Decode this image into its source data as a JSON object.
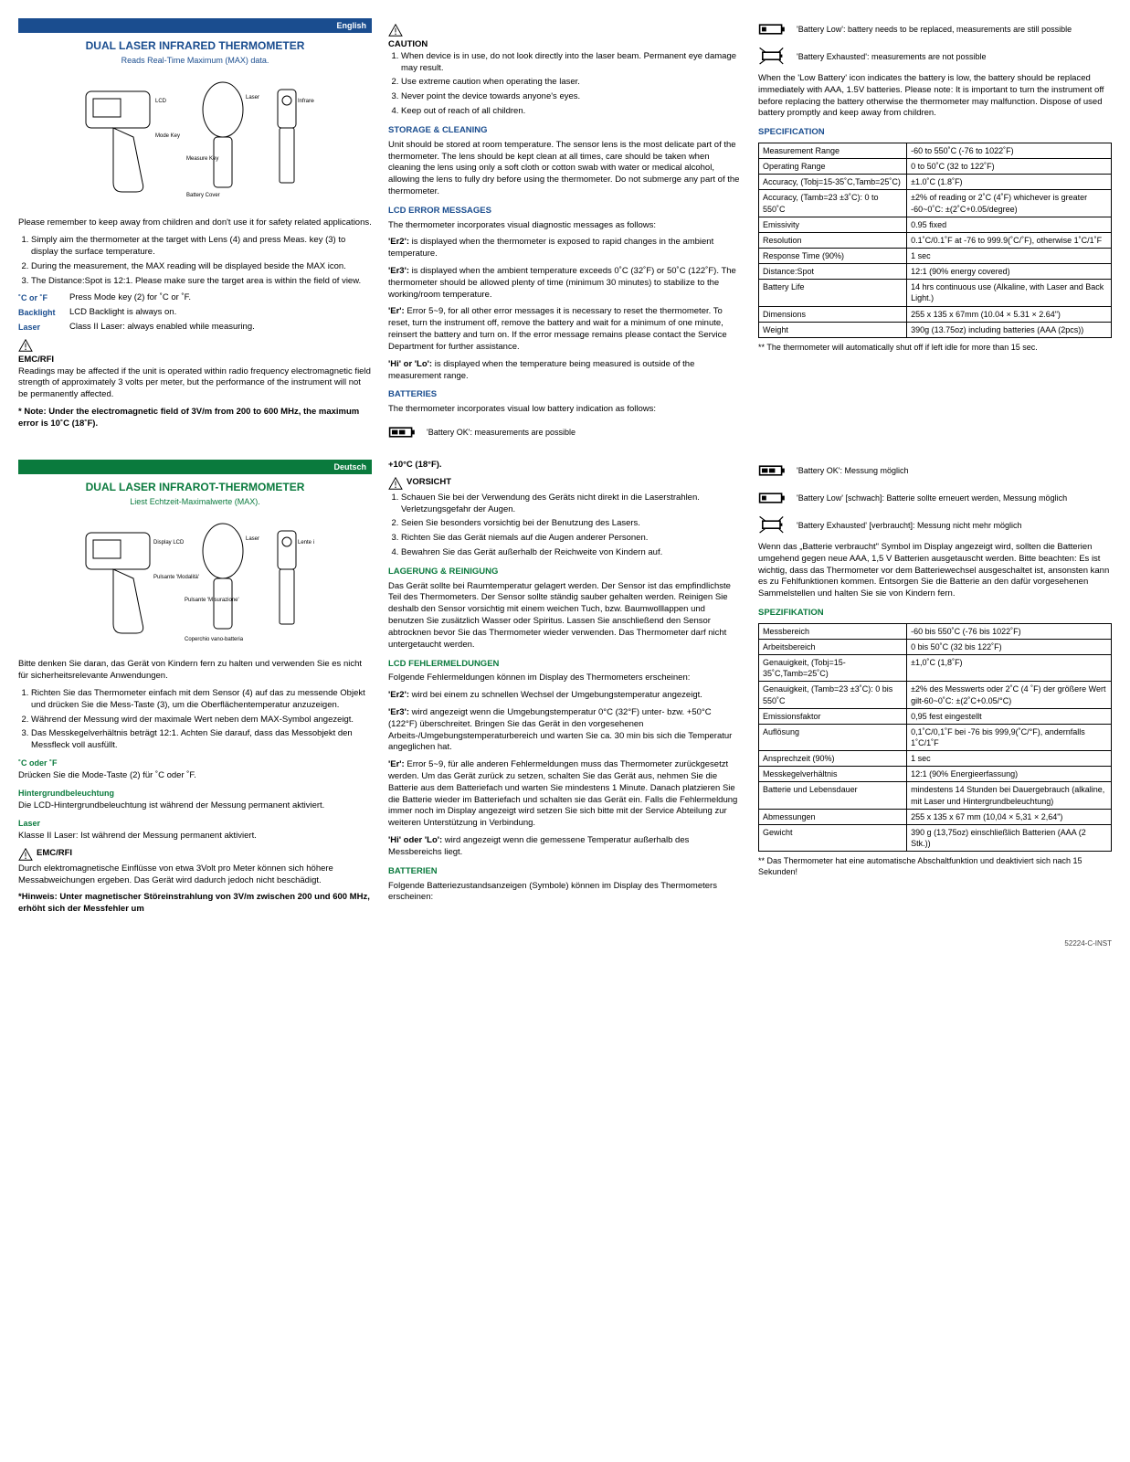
{
  "footer_code": "52224-C-INST",
  "en": {
    "lang_label": "English",
    "title": "DUAL LASER INFRARED THERMOMETER",
    "subtitle": "Reads Real-Time Maximum (MAX) data.",
    "diagram_labels": [
      "LCD",
      "Mode Key",
      "Measure Key",
      "Battery Cover",
      "Laser",
      "Infrared Lens"
    ],
    "intro": "Please remember to keep away from children and don't use it for safety related applications.",
    "steps": [
      "Simply aim the thermometer at the target with Lens (4) and press Meas. key (3) to display the surface temperature.",
      "During the measurement, the MAX reading will be displayed beside the MAX icon.",
      "The Distance:Spot is 12:1. Please make sure the target area is within the field of view."
    ],
    "defs": [
      {
        "term": "˚C or ˚F",
        "desc": "Press Mode key (2) for ˚C or ˚F."
      },
      {
        "term": "Backlight",
        "desc": "LCD Backlight is always on."
      },
      {
        "term": "Laser",
        "desc": "Class II Laser: always enabled while measuring."
      }
    ],
    "emc_hdr": "EMC/RFI",
    "emc_text": "Readings may be affected if the unit is operated within radio frequency electromagnetic field strength of approximately 3 volts per meter, but the performance of the instrument will not be permanently affected.",
    "emc_note": "* Note: Under the electromagnetic field of 3V/m from 200 to 600 MHz, the maximum error is 10˚C (18˚F).",
    "caution_hdr": "CAUTION",
    "caution_items": [
      "When device is in use, do not look directly into the laser beam. Permanent eye damage may result.",
      "Use extreme caution when operating the laser.",
      "Never point the device towards anyone's eyes.",
      "Keep out of reach of all children."
    ],
    "storage_hdr": "STORAGE & CLEANING",
    "storage_text": "Unit should be stored at room temperature. The sensor lens is the most delicate part of the thermometer. The lens should be kept clean at all times, care should be taken when cleaning the lens using only a soft cloth or cotton swab with water or medical alcohol, allowing the lens to fully dry before using the thermometer. Do not submerge any part of the thermometer.",
    "lcderr_hdr": "LCD ERROR MESSAGES",
    "lcderr_intro": "The thermometer incorporates visual diagnostic messages as follows:",
    "lcderr_paras": [
      "<b>'Er2':</b> is displayed when the thermometer is exposed to rapid changes in the ambient temperature.",
      "<b>'Er3':</b> is displayed when the ambient temperature exceeds 0˚C (32˚F) or 50˚C (122˚F). The thermometer should be allowed plenty of time (minimum 30 minutes) to stabilize to the working/room temperature.",
      "<b>'Er':</b> Error 5~9, for all other error messages it is necessary to reset the thermometer. To reset, turn the instrument off, remove the battery and wait for a minimum of one minute, reinsert the battery and turn on. If the error message remains please contact the Service Department for further assistance.",
      "<b>'Hi' or 'Lo':</b> is displayed when the temperature being measured is outside of the measurement range."
    ],
    "batt_hdr": "BATTERIES",
    "batt_intro": "The thermometer incorporates visual low battery indication as follows:",
    "batt_states": [
      "'Battery OK': measurements are possible",
      "'Battery Low': battery needs to be replaced, measurements are still possible",
      "'Battery Exhausted': measurements are not possible"
    ],
    "batt_para": "When the 'Low Battery' icon indicates the battery is low, the battery should be replaced immediately with AAA, 1.5V batteries. Please note: It is important to turn the instrument off before replacing the battery otherwise the thermometer may malfunction. Dispose of used battery promptly and keep away from children.",
    "spec_hdr": "SPECIFICATION",
    "spec_rows": [
      [
        "Measurement Range",
        "-60 to 550˚C (-76 to 1022˚F)"
      ],
      [
        "Operating Range",
        "0 to 50˚C (32 to 122˚F)"
      ],
      [
        "Accuracy, (Tobj=15-35˚C,Tamb=25˚C)",
        "±1.0˚C (1.8˚F)"
      ],
      [
        "Accuracy, (Tamb=23 ±3˚C): 0 to 550˚C",
        "±2% of reading or 2˚C (4˚F) whichever is greater -60~0˚C: ±(2˚C+0.05/degree)"
      ],
      [
        "Emissivity",
        "0.95 fixed"
      ],
      [
        "Resolution",
        "0.1˚C/0.1˚F at -76 to 999.9(˚C/˚F), otherwise 1˚C/1˚F"
      ],
      [
        "Response Time (90%)",
        "1 sec"
      ],
      [
        "Distance:Spot",
        "12:1 (90% energy covered)"
      ],
      [
        "Battery Life",
        "14 hrs continuous use (Alkaline, with Laser and Back Light.)"
      ],
      [
        "Dimensions",
        "255 x 135 x 67mm (10.04 × 5.31 × 2.64\")"
      ],
      [
        "Weight",
        "390g (13.75oz) including batteries (AAA (2pcs))"
      ]
    ],
    "spec_note": "** The thermometer will automatically shut off if left idle for more than 15 sec."
  },
  "de": {
    "lang_label": "Deutsch",
    "title": "DUAL LASER INFRAROT-THERMOMETER",
    "subtitle": "Liest Echtzeit-Maximalwerte (MAX).",
    "diagram_labels": [
      "Display LCD",
      "Pulsante 'Modalità'",
      "Pulsante 'Misurazione'",
      "Coperchio vano-batteria",
      "Laser",
      "Lente infrarosso"
    ],
    "intro": "Bitte denken Sie daran, das Gerät von Kindern fern zu halten und verwenden Sie es nicht für sicherheitsrelevante Anwendungen.",
    "steps": [
      "Richten Sie das Thermometer einfach mit dem Sensor (4) auf das zu messende Objekt und drücken Sie die Mess-Taste (3), um die Oberflächentemperatur anzuzeigen.",
      "Während der Messung wird der maximale Wert neben dem MAX-Symbol angezeigt.",
      "Das Messkegelverhältnis beträgt 12:1. Achten Sie darauf, dass das Messobjekt den Messfleck voll ausfüllt."
    ],
    "defs": [
      {
        "term": "˚C oder ˚F",
        "desc": "Drücken Sie die Mode-Taste (2) für ˚C oder ˚F."
      },
      {
        "term": "Hintergrundbeleuchtung",
        "desc": "Die LCD-Hintergrundbeleuchtung ist während der Messung permanent aktiviert."
      },
      {
        "term": "Laser",
        "desc": "Klasse II Laser: Ist während der Messung permanent aktiviert."
      }
    ],
    "emc_hdr": "EMC/RFI",
    "emc_text": "Durch elektromagnetische Einflüsse von etwa 3Volt pro Meter können sich höhere Messabweichungen ergeben. Das Gerät wird dadurch jedoch nicht beschädigt.",
    "emc_note": "*Hinweis: Unter magnetischer Störeinstrahlung von 3V/m zwischen 200 und 600 MHz, erhöht sich der Messfehler um",
    "temp_line": "+10°C (18°F).",
    "caution_hdr": "VORSICHT",
    "caution_items": [
      "Schauen Sie bei der Verwendung des Geräts nicht direkt in die Laserstrahlen. Verletzungsgefahr der Augen.",
      "Seien Sie besonders vorsichtig bei der Benutzung des Lasers.",
      "Richten Sie das Gerät niemals auf die Augen anderer Personen.",
      "Bewahren Sie das Gerät außerhalb der Reichweite von Kindern auf."
    ],
    "storage_hdr": "LAGERUNG & REINIGUNG",
    "storage_text": "Das Gerät sollte bei Raumtemperatur gelagert werden. Der Sensor ist das empfindlichste Teil des Thermometers. Der Sensor sollte ständig sauber gehalten werden. Reinigen Sie deshalb den Sensor vorsichtig mit einem weichen Tuch, bzw. Baumwolllappen und benutzen Sie zusätzlich Wasser oder Spiritus. Lassen Sie anschließend den Sensor abtrocknen bevor Sie das Thermometer wieder verwenden. Das Thermometer darf nicht untergetaucht werden.",
    "lcderr_hdr": "LCD FEHLERMELDUNGEN",
    "lcderr_intro": "Folgende Fehlermeldungen können im Display des Thermometers erscheinen:",
    "lcderr_paras": [
      "<b>'Er2':</b> wird bei einem zu schnellen Wechsel der Umgebungstemperatur angezeigt.",
      "<b>'Er3':</b> wird angezeigt wenn die Umgebungstemperatur 0°C (32°F) unter- bzw. +50°C (122°F) überschreitet. Bringen Sie das Gerät in den vorgesehenen Arbeits-/Umgebungstemperaturbereich und warten Sie ca. 30 min bis sich die Temperatur angeglichen hat.",
      "<b>'Er':</b> Error 5~9, für alle anderen Fehlermeldungen muss das Thermometer zurückgesetzt werden. Um das Gerät zurück zu setzen, schalten Sie das Gerät aus, nehmen Sie die Batterie aus dem Batteriefach und warten Sie mindestens 1 Minute. Danach platzieren Sie die Batterie wieder im Batteriefach und schalten sie das Gerät ein. Falls die Fehlermeldung immer noch im Display angezeigt wird setzen Sie sich bitte mit der Service Abteilung zur weiteren Unterstützung in Verbindung.",
      "<b>'Hi' oder 'Lo':</b> wird angezeigt wenn die gemessene Temperatur außerhalb des Messbereichs liegt."
    ],
    "batt_hdr": "BATTERIEN",
    "batt_intro": "Folgende Batteriezustandsanzeigen (Symbole) können im Display des Thermometers erscheinen:",
    "batt_states": [
      "'Battery OK': Messung möglich",
      "'Battery Low' [schwach]: Batterie sollte erneuert werden, Messung möglich",
      "'Battery Exhausted' [verbraucht]: Messung nicht mehr möglich"
    ],
    "batt_para": "Wenn das „Batterie verbraucht\" Symbol im Display angezeigt wird, sollten die Batterien umgehend gegen neue AAA, 1,5 V Batterien ausgetauscht werden. Bitte beachten: Es ist wichtig, dass das Thermometer vor dem Batteriewechsel ausgeschaltet ist, ansonsten kann es zu Fehlfunktionen kommen. Entsorgen Sie die Batterie an den dafür vorgesehenen Sammelstellen und halten Sie sie von Kindern fern.",
    "spec_hdr": "SPEZIFIKATION",
    "spec_rows": [
      [
        "Messbereich",
        "-60 bis 550˚C (-76 bis 1022˚F)"
      ],
      [
        "Arbeitsbereich",
        "0 bis 50˚C (32 bis 122˚F)"
      ],
      [
        "Genauigkeit, (Tobj=15-35˚C,Tamb=25˚C)",
        "±1,0˚C (1,8˚F)"
      ],
      [
        "Genauigkeit, (Tamb=23 ±3˚C): 0 bis 550˚C",
        "±2% des Messwerts oder 2˚C (4 ˚F) der größere Wert gilt-60~0˚C: ±(2˚C+0.05/°C)"
      ],
      [
        "Emissionsfaktor",
        "0,95 fest eingestellt"
      ],
      [
        "Auflösung",
        "0,1˚C/0,1˚F bei -76 bis 999,9(˚C/°F), andernfalls 1˚C/1˚F"
      ],
      [
        "Ansprechzeit (90%)",
        "1 sec"
      ],
      [
        "Messkegelverhältnis",
        "12:1 (90% Energieerfassung)"
      ],
      [
        "Batterie und Lebensdauer",
        "mindestens 14 Stunden bei Dauergebrauch (alkaline, mit Laser und Hintergrundbeleuchtung)"
      ],
      [
        "Abmessungen",
        "255 x 135 x 67 mm (10,04 × 5,31 × 2,64\")"
      ],
      [
        "Gewicht",
        "390 g (13,75oz) einschließlich Batterien (AAA (2 Stk.))"
      ]
    ],
    "spec_note": "** Das Thermometer hat eine automatische Abschaltfunktion und deaktiviert sich nach 15 Sekunden!"
  }
}
